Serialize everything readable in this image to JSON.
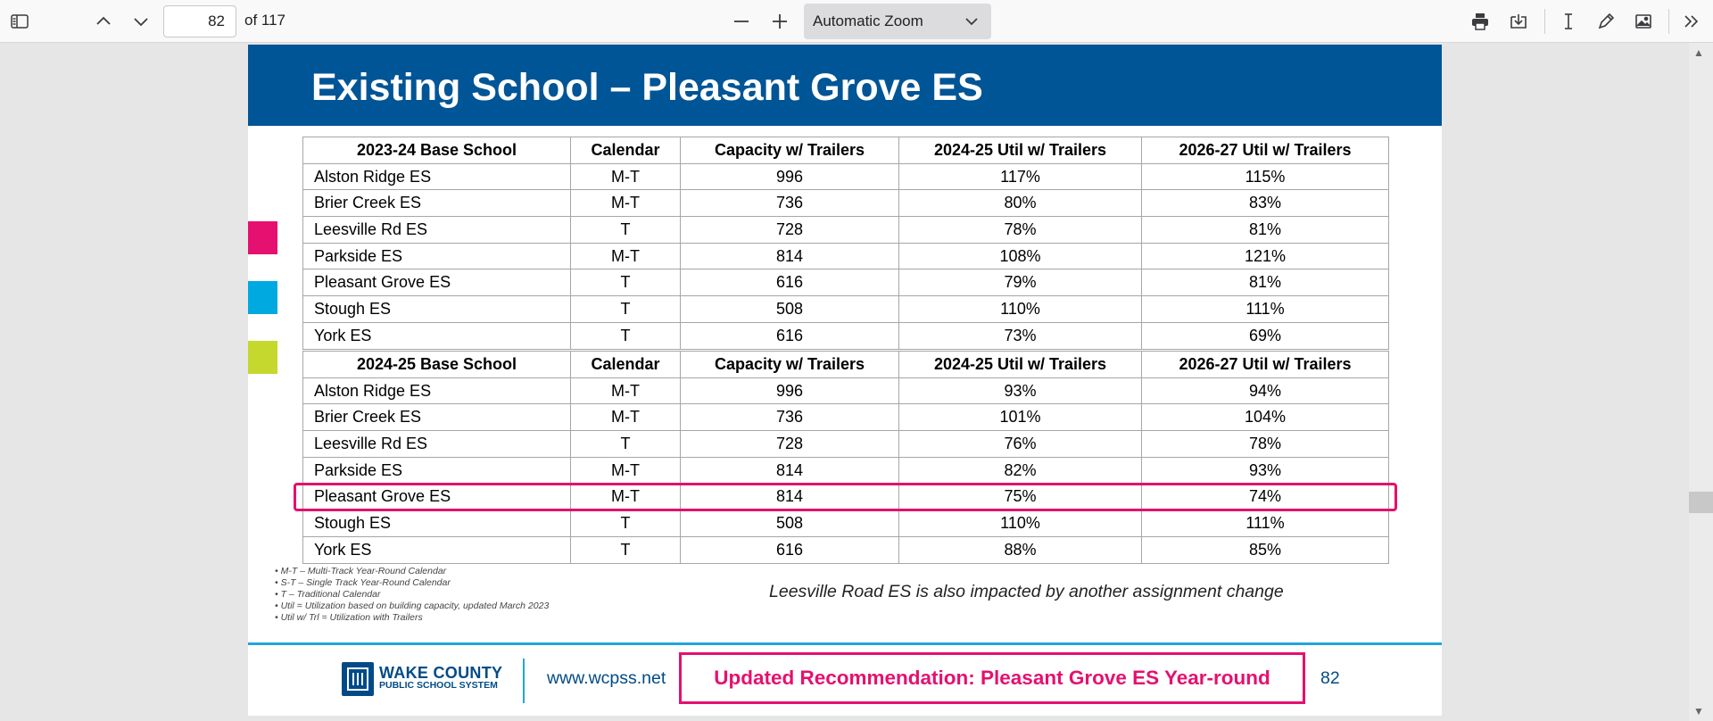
{
  "toolbar": {
    "page_current": "82",
    "page_total_label": "of 117",
    "zoom_label": "Automatic Zoom"
  },
  "slide": {
    "title": "Existing School – Pleasant Grove ES",
    "colors": {
      "banner": "#005596",
      "pink": "#e5106f",
      "cyan": "#00a9e0",
      "lime": "#c4d82e"
    },
    "table1": {
      "headers": [
        "2023-24 Base School",
        "Calendar",
        "Capacity w/ Trailers",
        "2024-25 Util w/ Trailers",
        "2026-27 Util w/ Trailers"
      ],
      "rows": [
        [
          "Alston Ridge ES",
          "M-T",
          "996",
          "117%",
          "115%"
        ],
        [
          "Brier Creek ES",
          "M-T",
          "736",
          "80%",
          "83%"
        ],
        [
          "Leesville Rd ES",
          "T",
          "728",
          "78%",
          "81%"
        ],
        [
          "Parkside ES",
          "M-T",
          "814",
          "108%",
          "121%"
        ],
        [
          "Pleasant Grove ES",
          "T",
          "616",
          "79%",
          "81%"
        ],
        [
          "Stough ES",
          "T",
          "508",
          "110%",
          "111%"
        ],
        [
          "York ES",
          "T",
          "616",
          "73%",
          "69%"
        ]
      ]
    },
    "table2": {
      "headers": [
        "2024-25 Base School",
        "Calendar",
        "Capacity w/ Trailers",
        "2024-25 Util w/ Trailers",
        "2026-27 Util w/ Trailers"
      ],
      "rows": [
        [
          "Alston Ridge ES",
          "M-T",
          "996",
          "93%",
          "94%"
        ],
        [
          "Brier Creek ES",
          "M-T",
          "736",
          "101%",
          "104%"
        ],
        [
          "Leesville Rd ES",
          "T",
          "728",
          "76%",
          "78%"
        ],
        [
          "Parkside ES",
          "M-T",
          "814",
          "82%",
          "93%"
        ],
        [
          "Pleasant Grove ES",
          "M-T",
          "814",
          "75%",
          "74%"
        ],
        [
          "Stough ES",
          "T",
          "508",
          "110%",
          "111%"
        ],
        [
          "York ES",
          "T",
          "616",
          "88%",
          "85%"
        ]
      ]
    },
    "notes": [
      "M-T – Multi-Track Year-Round Calendar",
      "S-T – Single Track Year-Round Calendar",
      "T – Traditional Calendar",
      "Util = Utilization based on building capacity, updated March 2023",
      "Util w/ Trl = Utilization with Trailers"
    ],
    "leesville_note": "Leesville Road ES is also impacted by another assignment change",
    "footer": {
      "logo_line1": "WAKE COUNTY",
      "logo_line2": "PUBLIC SCHOOL SYSTEM",
      "url": "www.wcpss.net",
      "recommendation": "Updated Recommendation: Pleasant Grove ES Year-round",
      "page_number": "82"
    }
  }
}
